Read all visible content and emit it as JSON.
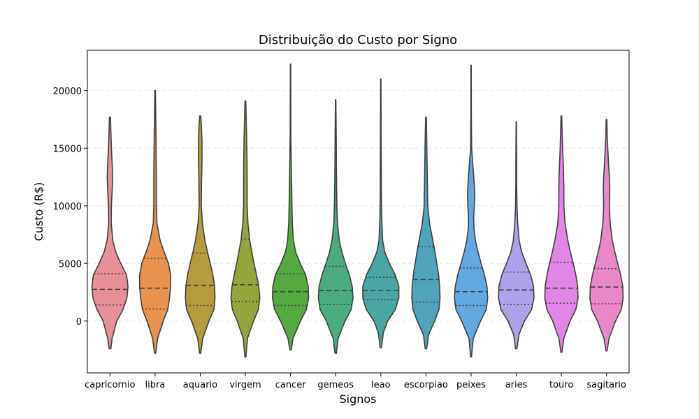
{
  "chart_data": {
    "type": "violin",
    "title": "Distribuição do Custo por Signo",
    "xlabel": "Signos",
    "ylabel": "Custo (R$)",
    "ylim": [
      -4500,
      23500
    ],
    "yticks": [
      0,
      5000,
      10000,
      15000,
      20000
    ],
    "grid": "y-dashed",
    "legend": "none",
    "inner": "quartile",
    "series": [
      {
        "name": "capricornio",
        "color": "#e8909a",
        "min": -2400,
        "max": 17700,
        "q1": 1400,
        "median": 2750,
        "q3": 4100,
        "profile": [
          [
            -2400,
            0.05
          ],
          [
            -1500,
            0.12
          ],
          [
            0,
            0.38
          ],
          [
            1000,
            0.72
          ],
          [
            2000,
            0.94
          ],
          [
            3000,
            1.0
          ],
          [
            4000,
            0.92
          ],
          [
            5000,
            0.6
          ],
          [
            6000,
            0.32
          ],
          [
            7000,
            0.16
          ],
          [
            8500,
            0.07
          ],
          [
            10000,
            0.08
          ],
          [
            11500,
            0.13
          ],
          [
            12500,
            0.15
          ],
          [
            13500,
            0.13
          ],
          [
            15000,
            0.08
          ],
          [
            16500,
            0.05
          ],
          [
            17700,
            0.03
          ]
        ]
      },
      {
        "name": "libra",
        "color": "#e8934f",
        "min": -2800,
        "max": 20000,
        "q1": 1050,
        "median": 2850,
        "q3": 5450,
        "profile": [
          [
            -2800,
            0.03
          ],
          [
            -1500,
            0.14
          ],
          [
            0,
            0.45
          ],
          [
            1000,
            0.7
          ],
          [
            2000,
            0.8
          ],
          [
            3000,
            0.86
          ],
          [
            4000,
            0.86
          ],
          [
            5000,
            0.74
          ],
          [
            6000,
            0.5
          ],
          [
            7000,
            0.28
          ],
          [
            8500,
            0.1
          ],
          [
            10000,
            0.07
          ],
          [
            12000,
            0.07
          ],
          [
            14000,
            0.06
          ],
          [
            16000,
            0.05
          ],
          [
            18000,
            0.03
          ],
          [
            20000,
            0.02
          ]
        ]
      },
      {
        "name": "aquario",
        "color": "#b59b3e",
        "min": -2800,
        "max": 17800,
        "q1": 1350,
        "median": 3100,
        "q3": 5900,
        "profile": [
          [
            -2800,
            0.03
          ],
          [
            -1500,
            0.14
          ],
          [
            0,
            0.48
          ],
          [
            1000,
            0.76
          ],
          [
            2000,
            0.82
          ],
          [
            3000,
            0.8
          ],
          [
            4000,
            0.7
          ],
          [
            5000,
            0.56
          ],
          [
            6000,
            0.4
          ],
          [
            7000,
            0.26
          ],
          [
            8500,
            0.12
          ],
          [
            10000,
            0.06
          ],
          [
            12000,
            0.07
          ],
          [
            14000,
            0.1
          ],
          [
            15500,
            0.1
          ],
          [
            16800,
            0.07
          ],
          [
            17800,
            0.03
          ]
        ]
      },
      {
        "name": "virgem",
        "color": "#95a43b",
        "min": -3100,
        "max": 19100,
        "q1": 1700,
        "median": 3150,
        "q3": 7100,
        "profile": [
          [
            -3100,
            0.03
          ],
          [
            -1500,
            0.12
          ],
          [
            0,
            0.45
          ],
          [
            1000,
            0.72
          ],
          [
            2000,
            0.8
          ],
          [
            3000,
            0.74
          ],
          [
            4000,
            0.62
          ],
          [
            5000,
            0.48
          ],
          [
            6000,
            0.36
          ],
          [
            7000,
            0.24
          ],
          [
            8500,
            0.14
          ],
          [
            10000,
            0.1
          ],
          [
            12000,
            0.1
          ],
          [
            14000,
            0.09
          ],
          [
            16000,
            0.07
          ],
          [
            18000,
            0.04
          ],
          [
            19100,
            0.02
          ]
        ]
      },
      {
        "name": "cancer",
        "color": "#54aa3e",
        "min": -2500,
        "max": 22300,
        "q1": 1350,
        "median": 2550,
        "q3": 4100,
        "profile": [
          [
            -2500,
            0.04
          ],
          [
            -1500,
            0.14
          ],
          [
            0,
            0.55
          ],
          [
            1000,
            0.88
          ],
          [
            2000,
            1.0
          ],
          [
            3000,
            0.98
          ],
          [
            4000,
            0.84
          ],
          [
            5000,
            0.54
          ],
          [
            6000,
            0.28
          ],
          [
            7000,
            0.16
          ],
          [
            8500,
            0.1
          ],
          [
            10000,
            0.08
          ],
          [
            12000,
            0.06
          ],
          [
            14000,
            0.04
          ],
          [
            16000,
            0.02
          ],
          [
            19000,
            0.015
          ],
          [
            22300,
            0.01
          ]
        ]
      },
      {
        "name": "gemeos",
        "color": "#49ab7e",
        "min": -2800,
        "max": 19200,
        "q1": 1450,
        "median": 2650,
        "q3": 4750,
        "profile": [
          [
            -2800,
            0.04
          ],
          [
            -1500,
            0.14
          ],
          [
            0,
            0.52
          ],
          [
            1000,
            0.86
          ],
          [
            2000,
            0.96
          ],
          [
            3000,
            0.92
          ],
          [
            4000,
            0.76
          ],
          [
            5000,
            0.54
          ],
          [
            6000,
            0.34
          ],
          [
            7000,
            0.2
          ],
          [
            8500,
            0.1
          ],
          [
            10000,
            0.07
          ],
          [
            12000,
            0.05
          ],
          [
            14000,
            0.04
          ],
          [
            16000,
            0.03
          ],
          [
            18000,
            0.02
          ],
          [
            19200,
            0.01
          ]
        ]
      },
      {
        "name": "leao",
        "color": "#4aa6a2",
        "min": -2300,
        "max": 21000,
        "q1": 1850,
        "median": 2650,
        "q3": 3800,
        "profile": [
          [
            -2300,
            0.04
          ],
          [
            -1000,
            0.14
          ],
          [
            0,
            0.38
          ],
          [
            1000,
            0.8
          ],
          [
            2000,
            1.0
          ],
          [
            3000,
            1.0
          ],
          [
            4000,
            0.8
          ],
          [
            5000,
            0.48
          ],
          [
            6000,
            0.22
          ],
          [
            7000,
            0.1
          ],
          [
            9000,
            0.05
          ],
          [
            11000,
            0.03
          ],
          [
            13000,
            0.03
          ],
          [
            15000,
            0.02
          ],
          [
            18000,
            0.015
          ],
          [
            21000,
            0.01
          ]
        ]
      },
      {
        "name": "escorpiao",
        "color": "#4fa3bd",
        "min": -2400,
        "max": 17700,
        "q1": 1650,
        "median": 3600,
        "q3": 6450,
        "profile": [
          [
            -2400,
            0.04
          ],
          [
            -1200,
            0.14
          ],
          [
            0,
            0.48
          ],
          [
            1000,
            0.72
          ],
          [
            2000,
            0.78
          ],
          [
            3000,
            0.76
          ],
          [
            4000,
            0.7
          ],
          [
            5000,
            0.6
          ],
          [
            6000,
            0.5
          ],
          [
            7000,
            0.38
          ],
          [
            8500,
            0.2
          ],
          [
            10000,
            0.1
          ],
          [
            12000,
            0.08
          ],
          [
            14000,
            0.06
          ],
          [
            16000,
            0.04
          ],
          [
            17700,
            0.02
          ]
        ]
      },
      {
        "name": "peixes",
        "color": "#62a9e2",
        "min": -3100,
        "max": 22200,
        "q1": 1350,
        "median": 2550,
        "q3": 4600,
        "profile": [
          [
            -3100,
            0.02
          ],
          [
            -1500,
            0.12
          ],
          [
            0,
            0.52
          ],
          [
            1000,
            0.84
          ],
          [
            2000,
            0.92
          ],
          [
            3000,
            0.88
          ],
          [
            4000,
            0.74
          ],
          [
            5000,
            0.56
          ],
          [
            6000,
            0.38
          ],
          [
            7000,
            0.24
          ],
          [
            8000,
            0.16
          ],
          [
            9000,
            0.14
          ],
          [
            10000,
            0.18
          ],
          [
            11000,
            0.2
          ],
          [
            12000,
            0.17
          ],
          [
            13500,
            0.1
          ],
          [
            15000,
            0.03
          ],
          [
            18000,
            0.015
          ],
          [
            22200,
            0.01
          ]
        ]
      },
      {
        "name": "aries",
        "color": "#ada1ea",
        "min": -2400,
        "max": 17300,
        "q1": 1450,
        "median": 2700,
        "q3": 4250,
        "profile": [
          [
            -2400,
            0.04
          ],
          [
            -1200,
            0.14
          ],
          [
            0,
            0.45
          ],
          [
            1000,
            0.85
          ],
          [
            2000,
            0.98
          ],
          [
            3000,
            0.96
          ],
          [
            4000,
            0.8
          ],
          [
            5000,
            0.54
          ],
          [
            6000,
            0.3
          ],
          [
            7000,
            0.16
          ],
          [
            8500,
            0.08
          ],
          [
            10000,
            0.04
          ],
          [
            12000,
            0.02
          ],
          [
            14000,
            0.02
          ],
          [
            16000,
            0.015
          ],
          [
            17300,
            0.01
          ]
        ]
      },
      {
        "name": "touro",
        "color": "#e185e7",
        "min": -2700,
        "max": 17800,
        "q1": 1550,
        "median": 2850,
        "q3": 5100,
        "profile": [
          [
            -2700,
            0.03
          ],
          [
            -1500,
            0.14
          ],
          [
            0,
            0.48
          ],
          [
            1000,
            0.8
          ],
          [
            2000,
            0.92
          ],
          [
            3000,
            0.9
          ],
          [
            4000,
            0.8
          ],
          [
            5000,
            0.66
          ],
          [
            6000,
            0.5
          ],
          [
            7000,
            0.36
          ],
          [
            8500,
            0.2
          ],
          [
            10000,
            0.14
          ],
          [
            11500,
            0.14
          ],
          [
            13000,
            0.12
          ],
          [
            14500,
            0.08
          ],
          [
            16000,
            0.05
          ],
          [
            17800,
            0.02
          ]
        ]
      },
      {
        "name": "sagitario",
        "color": "#e988c6",
        "min": -2600,
        "max": 17500,
        "q1": 1500,
        "median": 2950,
        "q3": 4550,
        "profile": [
          [
            -2600,
            0.03
          ],
          [
            -1500,
            0.14
          ],
          [
            0,
            0.5
          ],
          [
            1000,
            0.82
          ],
          [
            2000,
            0.92
          ],
          [
            3000,
            0.9
          ],
          [
            4000,
            0.78
          ],
          [
            5000,
            0.62
          ],
          [
            6000,
            0.46
          ],
          [
            7000,
            0.32
          ],
          [
            8500,
            0.2
          ],
          [
            10000,
            0.16
          ],
          [
            11500,
            0.18
          ],
          [
            12500,
            0.16
          ],
          [
            14000,
            0.1
          ],
          [
            16000,
            0.04
          ],
          [
            17500,
            0.02
          ]
        ]
      }
    ]
  }
}
